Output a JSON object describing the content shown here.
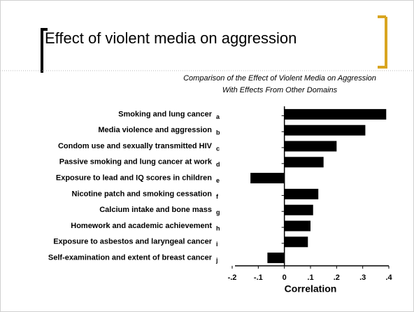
{
  "header": {
    "title": "Effect of violent media on aggression"
  },
  "chart_data": {
    "type": "barh",
    "title": "Comparison of the Effect of Violent Media on Aggression With Effects From Other Domains",
    "categories": [
      "Smoking and lung cancer",
      "Media violence and aggression",
      "Condom use and sexually transmitted HIV",
      "Passive smoking and lung cancer at work",
      "Exposure to lead and IQ scores in children",
      "Nicotine patch and smoking cessation",
      "Calcium intake and bone mass",
      "Homework and academic achievement",
      "Exposure to asbestos and laryngeal cancer",
      "Self-examination and extent of breast cancer"
    ],
    "letters": [
      "a",
      "b",
      "c",
      "d",
      "e",
      "f",
      "g",
      "h",
      "i",
      "j"
    ],
    "values": [
      0.39,
      0.31,
      0.2,
      0.15,
      -0.13,
      0.13,
      0.11,
      0.1,
      0.09,
      -0.065
    ],
    "color": "#000000",
    "xlabel": "Correlation",
    "xlim": [
      -0.2,
      0.4
    ],
    "xticks": [
      {
        "value": -0.2,
        "label": "-.2"
      },
      {
        "value": -0.1,
        "label": "-.1"
      },
      0,
      {
        "value": 0.1,
        "label": ".1"
      },
      {
        "value": 0.2,
        "label": ".2"
      },
      {
        "value": 0.3,
        "label": ".3"
      },
      {
        "value": 0.4,
        "label": ".4"
      }
    ]
  }
}
